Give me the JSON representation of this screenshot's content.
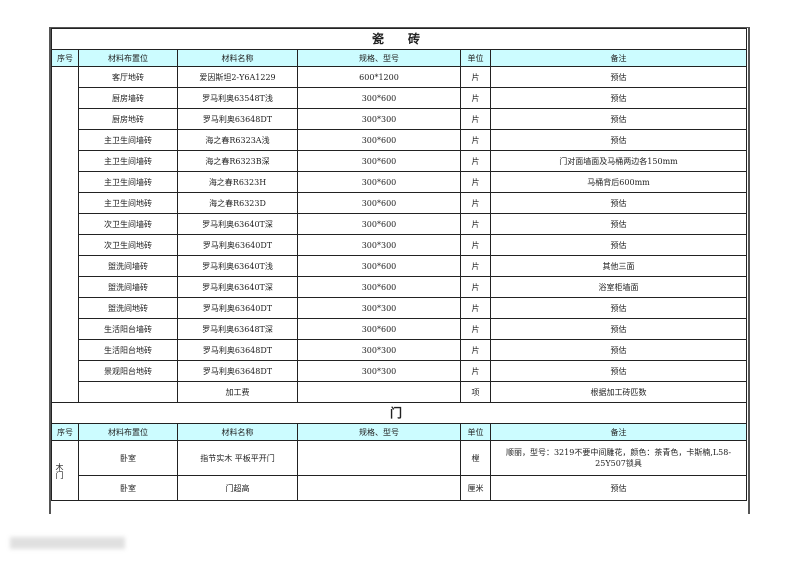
{
  "tile": {
    "title": "瓷　砖",
    "headers": [
      "序号",
      "材料布置位",
      "材料名称",
      "规格、型号",
      "单位",
      "备注"
    ],
    "rows": [
      [
        "客厅地砖",
        "爱因斯坦2-Y6A1229",
        "600*1200",
        "片",
        "预估"
      ],
      [
        "厨房墙砖",
        "罗马利奥63548T浅",
        "300*600",
        "片",
        "预估"
      ],
      [
        "厨房地砖",
        "罗马利奥63648DT",
        "300*300",
        "片",
        "预估"
      ],
      [
        "主卫生间墙砖",
        "海之春R6323A浅",
        "300*600",
        "片",
        "预估"
      ],
      [
        "主卫生间墙砖",
        "海之春R6323B深",
        "300*600",
        "片",
        "门对面墙面及马桶两边各150mm"
      ],
      [
        "主卫生间墙砖",
        "海之春R6323H",
        "300*600",
        "片",
        "马桶背后600mm"
      ],
      [
        "主卫生间地砖",
        "海之春R6323D",
        "300*600",
        "片",
        "预估"
      ],
      [
        "次卫生间墙砖",
        "罗马利奥63640T深",
        "300*600",
        "片",
        "预估"
      ],
      [
        "次卫生间地砖",
        "罗马利奥63640DT",
        "300*300",
        "片",
        "预估"
      ],
      [
        "盥洗间墙砖",
        "罗马利奥63640T浅",
        "300*600",
        "片",
        "其他三面"
      ],
      [
        "盥洗间墙砖",
        "罗马利奥63640T深",
        "300*600",
        "片",
        "浴室柜墙面"
      ],
      [
        "盥洗间地砖",
        "罗马利奥63640DT",
        "300*300",
        "片",
        "预估"
      ],
      [
        "生活阳台墙砖",
        "罗马利奥63648T深",
        "300*600",
        "片",
        "预估"
      ],
      [
        "生活阳台地砖",
        "罗马利奥63648DT",
        "300*300",
        "片",
        "预估"
      ],
      [
        "景观阳台地砖",
        "罗马利奥63648DT",
        "300*300",
        "片",
        "预估"
      ],
      [
        "",
        "加工费",
        "",
        "项",
        "根据加工砖匹数"
      ]
    ]
  },
  "door": {
    "title": "门",
    "headers": [
      "序号",
      "材料布置位",
      "材料名称",
      "规格、型号",
      "单位",
      "备注"
    ],
    "group": "木门",
    "rows": [
      [
        "卧室",
        "指节实木 平板平开门",
        "",
        "樘",
        "顺丽，型号：3219不要中间雕花，颜色：茶青色，卡斯楠,L58-25Y507锁具"
      ],
      [
        "卧室",
        "门超高",
        "",
        "厘米",
        "预估"
      ]
    ]
  },
  "colors": {
    "header_bg": "#ccfcff"
  }
}
